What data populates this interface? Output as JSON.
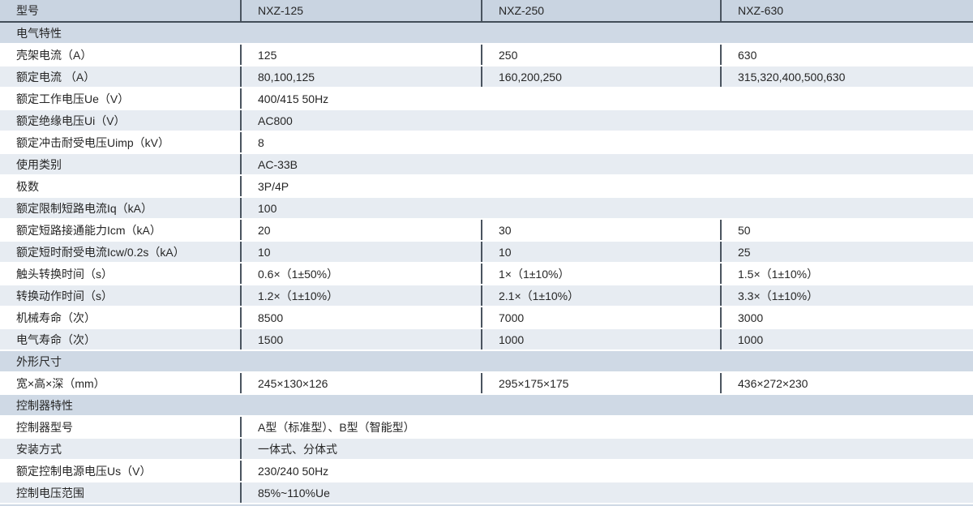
{
  "colors": {
    "header_bg": "#c9d4e1",
    "section_bg": "#cfd9e5",
    "row_even_bg": "#e7ecf2",
    "row_odd_bg": "#ffffff",
    "divider": "#4a545f",
    "header_border": "#434e59",
    "text": "#262626",
    "gap": "#ffffff"
  },
  "table": {
    "header": {
      "label": "型号",
      "models": [
        "NXZ-125",
        "NXZ-250",
        "NXZ-630"
      ]
    },
    "rows": [
      {
        "type": "section",
        "label": "电气特性"
      },
      {
        "type": "data",
        "label": "壳架电流（A）",
        "values": [
          "125",
          "250",
          "630"
        ]
      },
      {
        "type": "data",
        "label": "额定电流 （A）",
        "values": [
          "80,100,125",
          "160,200,250",
          "315,320,400,500,630"
        ]
      },
      {
        "type": "data",
        "label": "额定工作电压Ue（V）",
        "values": [
          "400/415 50Hz"
        ]
      },
      {
        "type": "data",
        "label": "额定绝缘电压Ui（V）",
        "values": [
          "AC800"
        ]
      },
      {
        "type": "data",
        "label": "额定冲击耐受电压Uimp（kV）",
        "values": [
          "8"
        ]
      },
      {
        "type": "data",
        "label": "使用类别",
        "values": [
          "AC-33B"
        ]
      },
      {
        "type": "data",
        "label": "极数",
        "values": [
          "3P/4P"
        ]
      },
      {
        "type": "data",
        "label": "额定限制短路电流Iq（kA）",
        "values": [
          "100"
        ]
      },
      {
        "type": "data",
        "label": "额定短路接通能力Icm（kA）",
        "values": [
          "20",
          "30",
          "50"
        ]
      },
      {
        "type": "data",
        "label": "额定短时耐受电流Icw/0.2s（kA）",
        "values": [
          "10",
          "10",
          "25"
        ]
      },
      {
        "type": "data",
        "label": "触头转换时间（s）",
        "values": [
          "0.6×（1±50%）",
          "1×（1±10%）",
          "1.5×（1±10%）"
        ]
      },
      {
        "type": "data",
        "label": "转换动作时间（s）",
        "values": [
          "1.2×（1±10%）",
          "2.1×（1±10%）",
          "3.3×（1±10%）"
        ]
      },
      {
        "type": "data",
        "label": "机械寿命（次）",
        "values": [
          "8500",
          "7000",
          "3000"
        ]
      },
      {
        "type": "data",
        "label": "电气寿命（次）",
        "values": [
          "1500",
          "1000",
          "1000"
        ]
      },
      {
        "type": "section",
        "label": "外形尺寸"
      },
      {
        "type": "data",
        "label": "宽×高×深（mm）",
        "values": [
          "245×130×126",
          "295×175×175",
          "436×272×230"
        ]
      },
      {
        "type": "section",
        "label": "控制器特性"
      },
      {
        "type": "data",
        "label": "控制器型号",
        "values": [
          "A型（标准型）、B型（智能型）"
        ]
      },
      {
        "type": "data",
        "label": "安装方式",
        "values": [
          "一体式、分体式"
        ]
      },
      {
        "type": "data",
        "label": "额定控制电源电压Us（V）",
        "values": [
          "230/240 50Hz"
        ]
      },
      {
        "type": "data",
        "label": "控制电压范围",
        "values": [
          "85%~110%Ue"
        ]
      }
    ]
  }
}
